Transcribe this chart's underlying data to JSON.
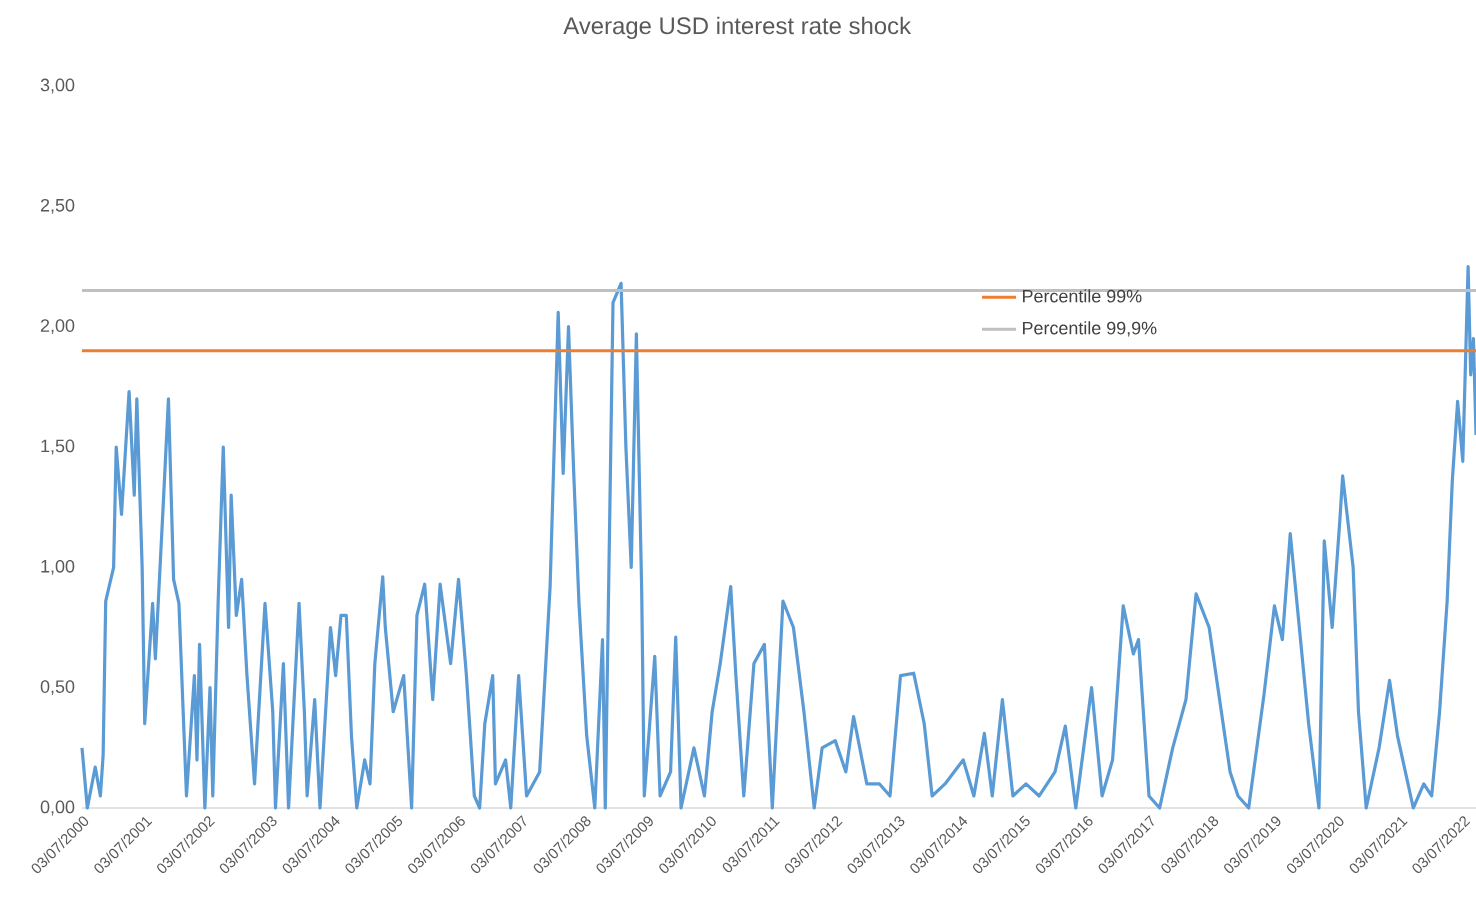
{
  "chart_data": {
    "type": "line",
    "title": "Average USD interest rate shock",
    "xlim": [
      "2000-07-01",
      "2022-09-16"
    ],
    "xticks": [
      {
        "value": "2000-07-03",
        "label": "03/07/2000"
      },
      {
        "value": "2001-07-03",
        "label": "03/07/2001"
      },
      {
        "value": "2002-07-03",
        "label": "03/07/2002"
      },
      {
        "value": "2003-07-03",
        "label": "03/07/2003"
      },
      {
        "value": "2004-07-03",
        "label": "03/07/2004"
      },
      {
        "value": "2005-07-03",
        "label": "03/07/2005"
      },
      {
        "value": "2006-07-03",
        "label": "03/07/2006"
      },
      {
        "value": "2007-07-03",
        "label": "03/07/2007"
      },
      {
        "value": "2008-07-03",
        "label": "03/07/2008"
      },
      {
        "value": "2009-07-03",
        "label": "03/07/2009"
      },
      {
        "value": "2010-07-03",
        "label": "03/07/2010"
      },
      {
        "value": "2011-07-03",
        "label": "03/07/2011"
      },
      {
        "value": "2012-07-03",
        "label": "03/07/2012"
      },
      {
        "value": "2013-07-03",
        "label": "03/07/2013"
      },
      {
        "value": "2014-07-03",
        "label": "03/07/2014"
      },
      {
        "value": "2015-07-03",
        "label": "03/07/2015"
      },
      {
        "value": "2016-07-03",
        "label": "03/07/2016"
      },
      {
        "value": "2017-07-03",
        "label": "03/07/2017"
      },
      {
        "value": "2018-07-03",
        "label": "03/07/2018"
      },
      {
        "value": "2019-07-03",
        "label": "03/07/2019"
      },
      {
        "value": "2020-07-03",
        "label": "03/07/2020"
      },
      {
        "value": "2021-07-03",
        "label": "03/07/2021"
      },
      {
        "value": "2022-07-03",
        "label": "03/07/2022"
      }
    ],
    "ylim": [
      0,
      3
    ],
    "yticks": [
      {
        "value": 0,
        "label": "0,00"
      },
      {
        "value": 0.5,
        "label": "0,50"
      },
      {
        "value": 1,
        "label": "1,00"
      },
      {
        "value": 1.5,
        "label": "1,50"
      },
      {
        "value": 2,
        "label": "2,00"
      },
      {
        "value": 2.5,
        "label": "2,50"
      },
      {
        "value": 3,
        "label": "3,00"
      }
    ],
    "legend": "right",
    "ref_lines": [
      {
        "axis": "y",
        "value": 1.9,
        "label": "Percentile 99%",
        "color": "#ed7d31"
      },
      {
        "axis": "y",
        "value": 2.15,
        "label": "Percentile 99,9%",
        "color": "#bfbfbf"
      }
    ],
    "series": [
      {
        "color": "#5b9bd5",
        "x": [
          "2000-07-01",
          "2000-08-01",
          "2000-09-16",
          "2000-10-16",
          "2000-11-01",
          "2000-11-16",
          "2001-01-01",
          "2001-01-16",
          "2001-02-16",
          "2001-04-01",
          "2001-05-01",
          "2001-05-16",
          "2001-06-16",
          "2001-07-01",
          "2001-08-16",
          "2001-09-01",
          "2001-10-16",
          "2001-11-16",
          "2001-12-16",
          "2002-01-16",
          "2002-03-01",
          "2002-04-16",
          "2002-05-01",
          "2002-05-16",
          "2002-06-16",
          "2002-07-16",
          "2002-08-01",
          "2002-09-01",
          "2002-10-01",
          "2002-11-01",
          "2002-11-16",
          "2002-12-16",
          "2003-01-16",
          "2003-02-16",
          "2003-04-01",
          "2003-06-01",
          "2003-07-16",
          "2003-08-01",
          "2003-09-16",
          "2003-10-16",
          "2003-12-16",
          "2004-01-16",
          "2004-02-01",
          "2004-03-16",
          "2004-04-16",
          "2004-06-16",
          "2004-07-16",
          "2004-08-16",
          "2004-09-16",
          "2004-10-16",
          "2004-11-16",
          "2005-01-01",
          "2005-02-01",
          "2005-03-01",
          "2005-04-16",
          "2005-05-01",
          "2005-06-16",
          "2005-08-16",
          "2005-10-01",
          "2005-11-01",
          "2005-12-16",
          "2006-02-01",
          "2006-03-16",
          "2006-05-16",
          "2006-07-01",
          "2006-08-16",
          "2006-10-01",
          "2006-11-01",
          "2006-12-01",
          "2007-01-16",
          "2007-02-01",
          "2007-04-01",
          "2007-05-01",
          "2007-06-16",
          "2007-08-01",
          "2007-10-16",
          "2007-12-16",
          "2008-02-01",
          "2008-03-01",
          "2008-04-01",
          "2008-05-01",
          "2008-06-01",
          "2008-07-16",
          "2008-09-01",
          "2008-10-16",
          "2008-11-01",
          "2008-12-16",
          "2009-02-01",
          "2009-03-01",
          "2009-04-01",
          "2009-05-01",
          "2009-06-01",
          "2009-06-16",
          "2009-08-16",
          "2009-09-16",
          "2009-11-16",
          "2009-12-16",
          "2010-01-16",
          "2010-04-01",
          "2010-06-01",
          "2010-07-16",
          "2010-09-01",
          "2010-11-01",
          "2010-12-01",
          "2011-01-16",
          "2011-03-16",
          "2011-05-16",
          "2011-07-01",
          "2011-09-01",
          "2011-11-01",
          "2012-01-01",
          "2012-03-01",
          "2012-04-16",
          "2012-07-01",
          "2012-09-01",
          "2012-10-16",
          "2013-01-01",
          "2013-03-16",
          "2013-05-16",
          "2013-07-16",
          "2013-10-01",
          "2013-12-01",
          "2014-01-16",
          "2014-04-01",
          "2014-07-16",
          "2014-09-16",
          "2014-11-16",
          "2015-01-01",
          "2015-03-01",
          "2015-05-01",
          "2015-07-16",
          "2015-10-01",
          "2016-01-01",
          "2016-03-01",
          "2016-05-01",
          "2016-08-01",
          "2016-10-01",
          "2016-12-01",
          "2017-02-01",
          "2017-04-01",
          "2017-05-01",
          "2017-07-01",
          "2017-09-01",
          "2017-11-16",
          "2018-02-01",
          "2018-04-01",
          "2018-06-16",
          "2018-08-16",
          "2018-10-16",
          "2018-12-01",
          "2019-02-01",
          "2019-05-01",
          "2019-07-01",
          "2019-08-16",
          "2019-10-01",
          "2019-11-16",
          "2020-01-16",
          "2020-03-16",
          "2020-04-16",
          "2020-06-01",
          "2020-07-16",
          "2020-08-01",
          "2020-10-01",
          "2020-11-01",
          "2020-12-16",
          "2021-03-01",
          "2021-05-01",
          "2021-06-16",
          "2021-09-16",
          "2021-11-16",
          "2022-01-01",
          "2022-02-16",
          "2022-04-01",
          "2022-05-01",
          "2022-06-01",
          "2022-07-01",
          "2022-08-01",
          "2022-08-16",
          "2022-09-01",
          "2022-09-16"
        ],
        "values": [
          0.25,
          0.0,
          0.17,
          0.05,
          0.22,
          0.86,
          1.0,
          1.5,
          1.22,
          1.73,
          1.3,
          1.7,
          1.0,
          0.35,
          0.85,
          0.62,
          1.25,
          1.7,
          0.95,
          0.85,
          0.05,
          0.55,
          0.2,
          0.68,
          0.0,
          0.5,
          0.05,
          0.85,
          1.5,
          0.75,
          1.3,
          0.8,
          0.95,
          0.55,
          0.1,
          0.85,
          0.4,
          0.0,
          0.6,
          0.0,
          0.85,
          0.4,
          0.05,
          0.45,
          0.0,
          0.75,
          0.55,
          0.8,
          0.8,
          0.3,
          0.0,
          0.2,
          0.1,
          0.6,
          0.96,
          0.75,
          0.4,
          0.55,
          0.0,
          0.8,
          0.93,
          0.45,
          0.93,
          0.6,
          0.95,
          0.55,
          0.05,
          0.0,
          0.35,
          0.55,
          0.1,
          0.2,
          0.0,
          0.55,
          0.05,
          0.15,
          0.92,
          2.06,
          1.39,
          2.0,
          1.4,
          0.85,
          0.3,
          0.0,
          0.7,
          0.0,
          2.1,
          2.18,
          1.5,
          1.0,
          1.97,
          0.9,
          0.05,
          0.63,
          0.05,
          0.15,
          0.71,
          0.0,
          0.25,
          0.05,
          0.4,
          0.6,
          0.92,
          0.55,
          0.05,
          0.6,
          0.68,
          0.0,
          0.86,
          0.75,
          0.4,
          0.0,
          0.25,
          0.28,
          0.15,
          0.38,
          0.1,
          0.1,
          0.05,
          0.55,
          0.56,
          0.35,
          0.05,
          0.1,
          0.2,
          0.05,
          0.31,
          0.05,
          0.45,
          0.05,
          0.1,
          0.05,
          0.15,
          0.34,
          0.0,
          0.5,
          0.05,
          0.2,
          0.84,
          0.64,
          0.7,
          0.05,
          0.0,
          0.25,
          0.45,
          0.89,
          0.75,
          0.45,
          0.15,
          0.05,
          0.0,
          0.47,
          0.84,
          0.7,
          1.14,
          0.8,
          0.35,
          0.0,
          1.11,
          0.75,
          1.2,
          1.38,
          1.0,
          0.4,
          0.0,
          0.25,
          0.53,
          0.3,
          0.0,
          0.1,
          0.05,
          0.4,
          0.86,
          1.36,
          1.69,
          1.44,
          2.25,
          1.8,
          1.95,
          1.55
        ]
      }
    ]
  }
}
